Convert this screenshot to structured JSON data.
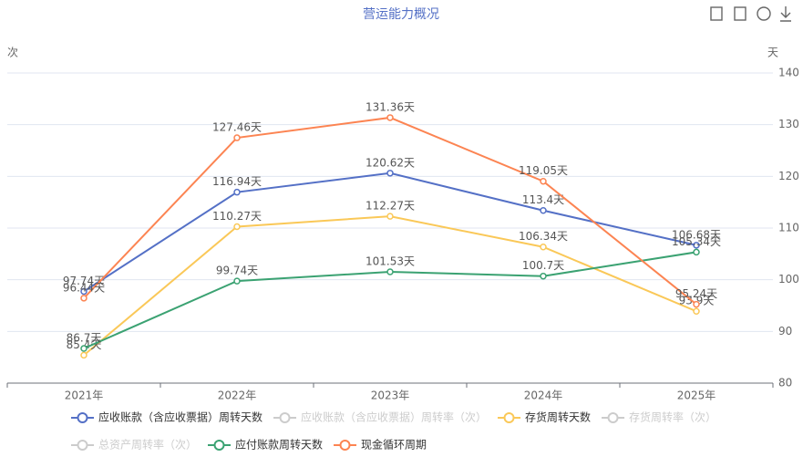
{
  "chart_data": {
    "type": "line",
    "title": "营运能力概况",
    "y_axis_label": "次",
    "y2_axis_label": "天",
    "categories": [
      "2021年",
      "2022年",
      "2023年",
      "2024年",
      "2025年"
    ],
    "y2lim": [
      80,
      140
    ],
    "y2ticks": [
      80,
      90,
      100,
      110,
      120,
      130,
      140
    ],
    "grid": true,
    "series": [
      {
        "name": "应收账款（含应收票据）周转天数",
        "color": "#5470c6",
        "axis": "y2",
        "visible": true,
        "values": [
          97.74,
          116.94,
          120.62,
          113.4,
          106.68
        ],
        "value_labels": [
          "97.74天",
          "116.94天",
          "120.62天",
          "113.4天",
          "106.68天"
        ]
      },
      {
        "name": "应收账款（含应收票据）周转率（次）",
        "color": "#cccccc",
        "visible": false
      },
      {
        "name": "存货周转天数",
        "color": "#fac858",
        "axis": "y2",
        "visible": true,
        "values": [
          85.4,
          110.27,
          112.27,
          106.34,
          93.9
        ],
        "value_labels": [
          "85.4天",
          "110.27天",
          "112.27天",
          "106.34天",
          "93.9天"
        ]
      },
      {
        "name": "存货周转率（次）",
        "color": "#cccccc",
        "visible": false
      },
      {
        "name": "总资产周转率（次）",
        "color": "#cccccc",
        "visible": false
      },
      {
        "name": "应付账款周转天数",
        "color": "#3ba272",
        "axis": "y2",
        "visible": true,
        "values": [
          86.7,
          99.74,
          101.53,
          100.7,
          105.34
        ],
        "value_labels": [
          "86.7天",
          "99.74天",
          "101.53天",
          "100.7天",
          "105.34天"
        ]
      },
      {
        "name": "现金循环周期",
        "color": "#fc8452",
        "axis": "y2",
        "visible": true,
        "values": [
          96.44,
          127.46,
          131.36,
          119.05,
          95.24
        ],
        "value_labels": [
          "96.44天",
          "127.46天",
          "131.36天",
          "119.05天",
          "95.24天"
        ]
      }
    ]
  }
}
